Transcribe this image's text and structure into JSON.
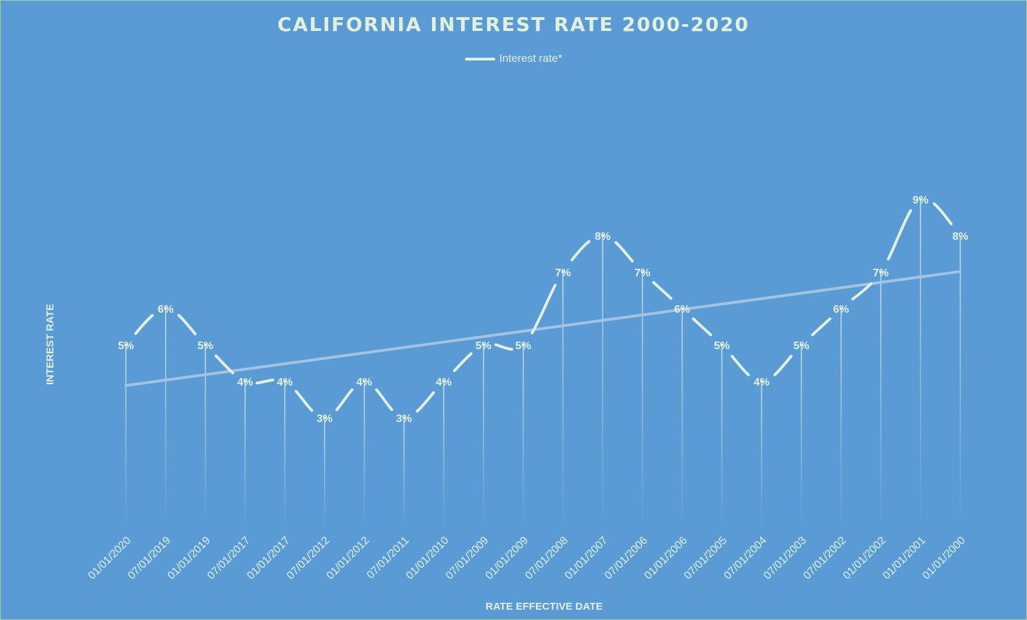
{
  "chart_data": {
    "type": "line",
    "title": "CALIFORNIA INTEREST RATE 2000-2020",
    "xlabel": "RATE EFFECTIVE DATE",
    "ylabel": "INTEREST RATE",
    "legend": {
      "entries": [
        "Interest rate*"
      ],
      "placement": "top"
    },
    "grid": false,
    "categories": [
      "01/01/2020",
      "07/01/2019",
      "01/01/2019",
      "07/01/2017",
      "01/01/2017",
      "07/01/2012",
      "01/01/2012",
      "07/01/2011",
      "01/01/2010",
      "07/01/2009",
      "01/01/2009",
      "07/01/2008",
      "01/01/2007",
      "07/01/2006",
      "01/01/2006",
      "07/01/2005",
      "07/01/2004",
      "07/01/2003",
      "07/01/2002",
      "01/01/2002",
      "01/01/2001",
      "01/01/2000"
    ],
    "series": [
      {
        "name": "Interest rate*",
        "values": [
          5,
          6,
          5,
          4,
          4,
          3,
          4,
          3,
          4,
          5,
          5,
          7,
          8,
          7,
          6,
          5,
          4,
          5,
          6,
          7,
          9,
          8
        ],
        "data_labels": [
          "5%",
          "6%",
          "5%",
          "4%",
          "4%",
          "3%",
          "4%",
          "3%",
          "4%",
          "5%",
          "5%",
          "7%",
          "8%",
          "7%",
          "6%",
          "5%",
          "4%",
          "5%",
          "6%",
          "7%",
          "9%",
          "8%"
        ]
      }
    ],
    "trendline": {
      "type": "linear"
    },
    "drop_lines": true,
    "smooth": true,
    "ylim": [
      0,
      13
    ],
    "colors": {
      "background": "#5b9bd5",
      "line": "#e2f0d9",
      "trendline": "#a4c3e2",
      "text": "#e2f0d9",
      "border": "#a9d18e"
    }
  }
}
